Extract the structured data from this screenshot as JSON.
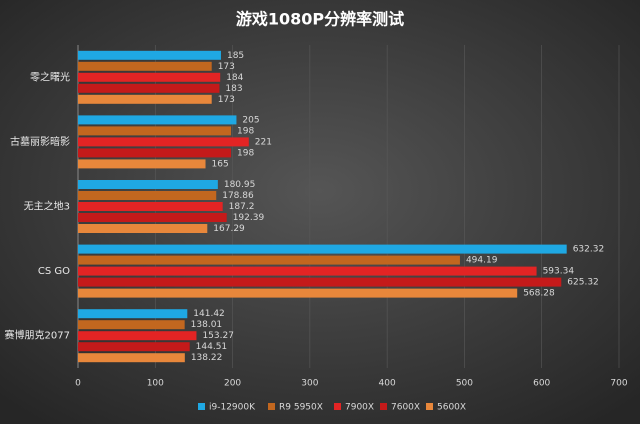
{
  "chart_data": {
    "type": "hbar",
    "title": "游戏1080P分辨率测试",
    "categories": [
      "零之曙光",
      "古墓丽影暗影",
      "无主之地3",
      "CS GO",
      "赛博朋克2077"
    ],
    "series": [
      {
        "name": "i9-12900K",
        "color": "#1fa8e3",
        "values": [
          185,
          205,
          180.95,
          632.32,
          141.42
        ]
      },
      {
        "name": "R9 5950X",
        "color": "#c2671f",
        "values": [
          173,
          198,
          178.86,
          494.19,
          138.01
        ]
      },
      {
        "name": "7900X",
        "color": "#e32424",
        "values": [
          184,
          221,
          187.2,
          593.34,
          153.27
        ]
      },
      {
        "name": "7600X",
        "color": "#c41a1a",
        "values": [
          183,
          198,
          192.39,
          625.32,
          144.51
        ]
      },
      {
        "name": "5600X",
        "color": "#e8873b",
        "values": [
          173,
          165,
          167.29,
          568.28,
          138.22
        ]
      }
    ],
    "xlim": [
      0,
      700
    ],
    "xticks": [
      0,
      100,
      200,
      300,
      400,
      500,
      600,
      700
    ],
    "grid": true
  }
}
